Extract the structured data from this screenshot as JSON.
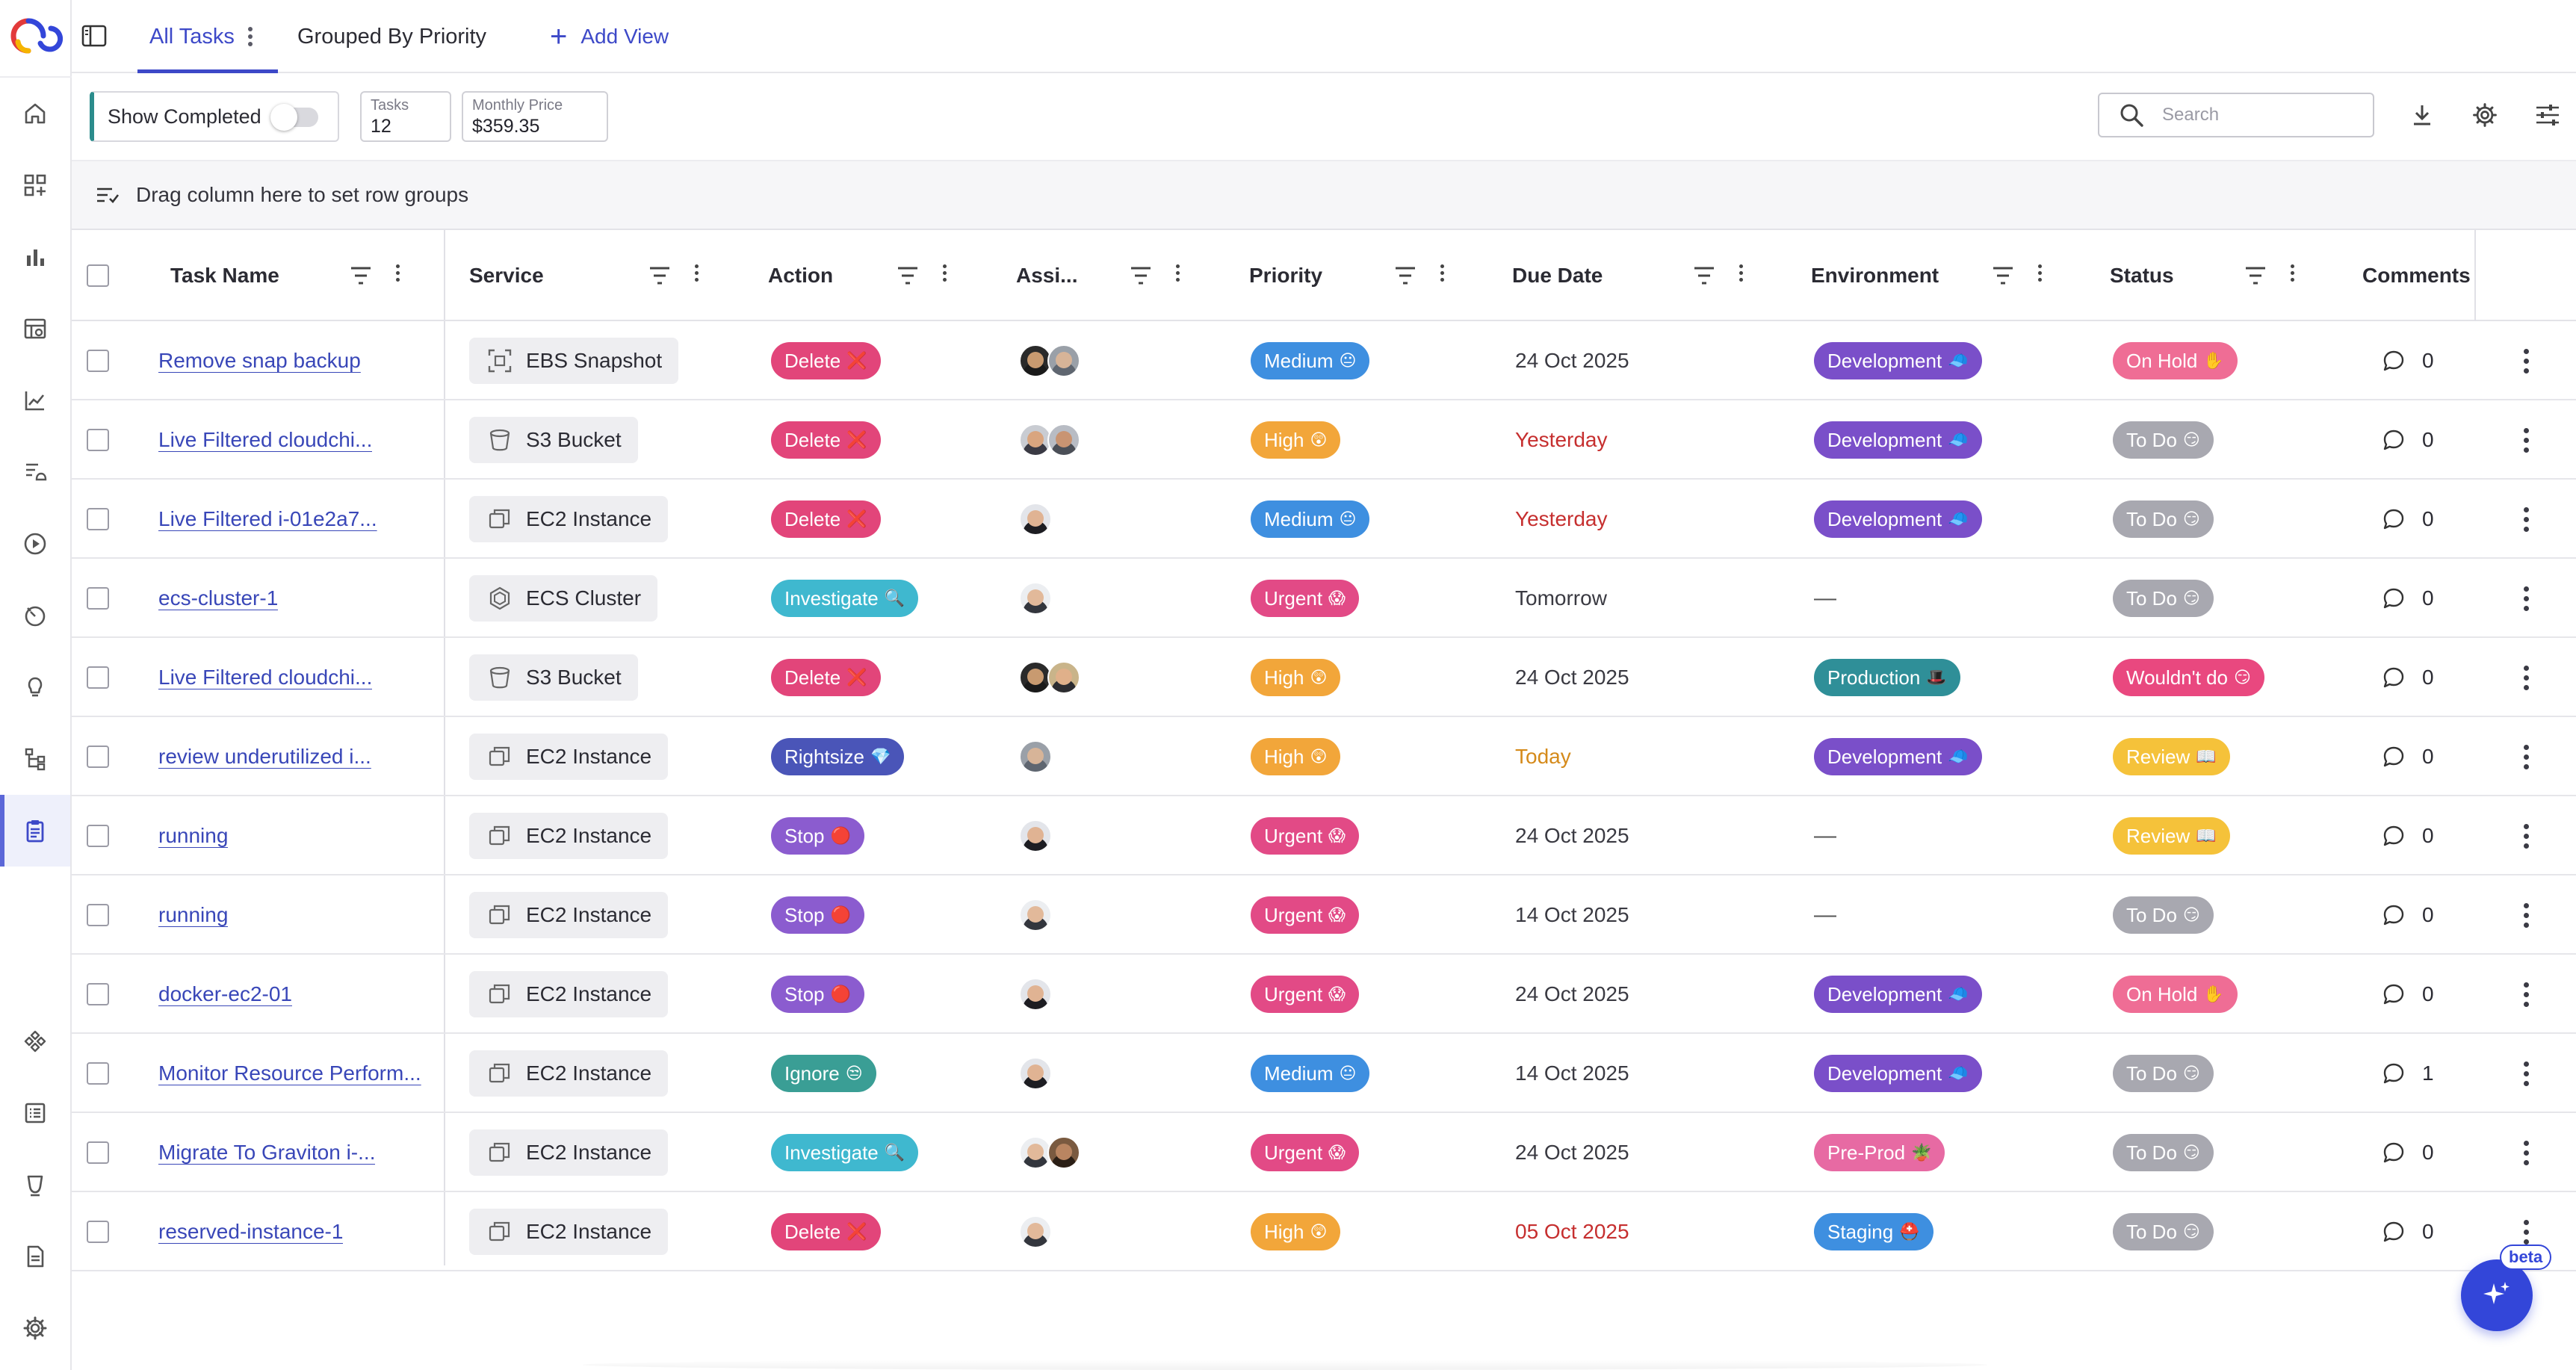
{
  "nav": {
    "items": [
      "home",
      "widgets",
      "analytics",
      "dashboards",
      "trends",
      "notifications",
      "play",
      "schedules",
      "ideas",
      "workflows",
      "tasks",
      "integrations",
      "reports",
      "pipelines",
      "documents",
      "settings"
    ],
    "active": "tasks"
  },
  "views": {
    "tabs": [
      {
        "label": "All Tasks",
        "active": true
      },
      {
        "label": "Grouped By Priority",
        "active": false
      }
    ],
    "add_label": "Add View"
  },
  "toolbar": {
    "show_completed_label": "Show Completed",
    "show_completed_on": false,
    "tasks_label": "Tasks",
    "tasks_value": "12",
    "price_label": "Monthly Price",
    "price_value": "$359.35",
    "search_placeholder": "Search"
  },
  "groupbar": {
    "label": "Drag column here to set row groups"
  },
  "columns": [
    "Task Name",
    "Service",
    "Action",
    "Assi...",
    "Priority",
    "Due Date",
    "Environment",
    "Status",
    "Comments"
  ],
  "colors": {
    "accent": "#3d49c8",
    "link": "#3947b8",
    "action": {
      "Delete": "#e2457a",
      "Investigate": "#3fb8cf",
      "Rightsize": "#4a55b8",
      "Stop": "#8b5ccf",
      "Ignore": "#3a9e95"
    },
    "priority": {
      "Medium": "#3e8fe0",
      "High": "#f2a63a",
      "Urgent": "#e24a86"
    },
    "environment": {
      "Development": "#7a4fc9",
      "Production": "#2f8f98",
      "Pre-Prod": "#e76aa3",
      "Staging": "#3e8fe0"
    },
    "status": {
      "On Hold": "#ef6d95",
      "To Do": "#a8a8b0",
      "Wouldn't do": "#e9487f",
      "Review": "#f5c23a"
    },
    "due_overdue": "#c62f2f",
    "due_today": "#d58a1a"
  },
  "rows": [
    {
      "task": "Remove snap backup",
      "service": "EBS Snapshot",
      "service_icon": "snapshot-icon",
      "action": "Delete",
      "action_emoji": "❌",
      "assignees": [
        "a1",
        "a2"
      ],
      "priority": "Medium",
      "priority_emoji": "😐",
      "due": "24 Oct 2025",
      "due_state": "normal",
      "environment": "Development",
      "env_emoji": "🧢",
      "status": "On Hold",
      "status_emoji": "✋",
      "comments": "0"
    },
    {
      "task": "Live Filtered cloudchi...",
      "service": "S3 Bucket",
      "service_icon": "bucket-icon",
      "action": "Delete",
      "action_emoji": "❌",
      "assignees": [
        "a3",
        "a4"
      ],
      "priority": "High",
      "priority_emoji": "😲",
      "due": "Yesterday",
      "due_state": "overdue",
      "environment": "Development",
      "env_emoji": "🧢",
      "status": "To Do",
      "status_emoji": "😏",
      "comments": "0"
    },
    {
      "task": "Live Filtered i-01e2a7...",
      "service": "EC2 Instance",
      "service_icon": "instance-icon",
      "action": "Delete",
      "action_emoji": "❌",
      "assignees": [
        "a5"
      ],
      "priority": "Medium",
      "priority_emoji": "😐",
      "due": "Yesterday",
      "due_state": "overdue",
      "environment": "Development",
      "env_emoji": "🧢",
      "status": "To Do",
      "status_emoji": "😏",
      "comments": "0"
    },
    {
      "task": "ecs-cluster-1",
      "service": "ECS Cluster",
      "service_icon": "cluster-icon",
      "action": "Investigate",
      "action_emoji": "🔍",
      "assignees": [
        "a6"
      ],
      "priority": "Urgent",
      "priority_emoji": "😱",
      "due": "Tomorrow",
      "due_state": "normal",
      "environment": "",
      "env_emoji": "",
      "status": "To Do",
      "status_emoji": "😏",
      "comments": "0"
    },
    {
      "task": "Live Filtered cloudchi...",
      "service": "S3 Bucket",
      "service_icon": "bucket-icon",
      "action": "Delete",
      "action_emoji": "❌",
      "assignees": [
        "a1",
        "a7"
      ],
      "priority": "High",
      "priority_emoji": "😲",
      "due": "24 Oct 2025",
      "due_state": "normal",
      "environment": "Production",
      "env_emoji": "🎩",
      "status": "Wouldn't do",
      "status_emoji": "😏",
      "comments": "0"
    },
    {
      "task": "review underutilized i...",
      "service": "EC2 Instance",
      "service_icon": "instance-icon",
      "action": "Rightsize",
      "action_emoji": "💎",
      "assignees": [
        "a2"
      ],
      "priority": "High",
      "priority_emoji": "😲",
      "due": "Today",
      "due_state": "today",
      "environment": "Development",
      "env_emoji": "🧢",
      "status": "Review",
      "status_emoji": "📖",
      "comments": "0"
    },
    {
      "task": "running",
      "service": "EC2 Instance",
      "service_icon": "instance-icon",
      "action": "Stop",
      "action_emoji": "🔴",
      "assignees": [
        "a5"
      ],
      "priority": "Urgent",
      "priority_emoji": "😱",
      "due": "24 Oct 2025",
      "due_state": "normal",
      "environment": "",
      "env_emoji": "",
      "status": "Review",
      "status_emoji": "📖",
      "comments": "0"
    },
    {
      "task": "running",
      "service": "EC2 Instance",
      "service_icon": "instance-icon",
      "action": "Stop",
      "action_emoji": "🔴",
      "assignees": [
        "a6"
      ],
      "priority": "Urgent",
      "priority_emoji": "😱",
      "due": "14 Oct 2025",
      "due_state": "normal",
      "environment": "",
      "env_emoji": "",
      "status": "To Do",
      "status_emoji": "😏",
      "comments": "0"
    },
    {
      "task": "docker-ec2-01",
      "service": "EC2 Instance",
      "service_icon": "instance-icon",
      "action": "Stop",
      "action_emoji": "🔴",
      "assignees": [
        "a5"
      ],
      "priority": "Urgent",
      "priority_emoji": "😱",
      "due": "24 Oct 2025",
      "due_state": "normal",
      "environment": "Development",
      "env_emoji": "🧢",
      "status": "On Hold",
      "status_emoji": "✋",
      "comments": "0"
    },
    {
      "task": "Monitor Resource Perform...",
      "service": "EC2 Instance",
      "service_icon": "instance-icon",
      "action": "Ignore",
      "action_emoji": "😒",
      "assignees": [
        "a5"
      ],
      "priority": "Medium",
      "priority_emoji": "😐",
      "due": "14 Oct 2025",
      "due_state": "normal",
      "environment": "Development",
      "env_emoji": "🧢",
      "status": "To Do",
      "status_emoji": "😏",
      "comments": "1"
    },
    {
      "task": "Migrate To Graviton i-...",
      "service": "EC2 Instance",
      "service_icon": "instance-icon",
      "action": "Investigate",
      "action_emoji": "🔍",
      "assignees": [
        "a6",
        "a8"
      ],
      "priority": "Urgent",
      "priority_emoji": "😱",
      "due": "24 Oct 2025",
      "due_state": "normal",
      "environment": "Pre-Prod",
      "env_emoji": "🪴",
      "status": "To Do",
      "status_emoji": "😏",
      "comments": "0"
    },
    {
      "task": "reserved-instance-1",
      "service": "EC2 Instance",
      "service_icon": "instance-icon",
      "action": "Delete",
      "action_emoji": "❌",
      "assignees": [
        "a6"
      ],
      "priority": "High",
      "priority_emoji": "😲",
      "due": "05 Oct 2025",
      "due_state": "overdue",
      "environment": "Staging",
      "env_emoji": "⛑️",
      "status": "To Do",
      "status_emoji": "😏",
      "comments": "0"
    }
  ],
  "assistant": {
    "badge": "beta"
  }
}
